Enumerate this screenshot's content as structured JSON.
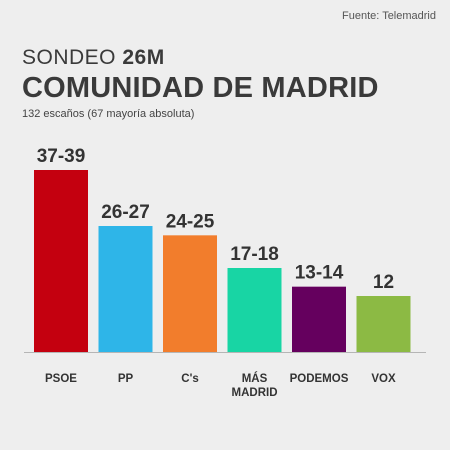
{
  "source": "Fuente: Telemadrid",
  "title_prefix": "SONDEO",
  "title_strong": "26M",
  "title_main": "COMUNIDAD DE MADRID",
  "subtitle": "132 escaños (67 mayoría absoluta)",
  "chart_data": {
    "type": "bar",
    "title": "COMUNIDAD DE MADRID",
    "subtitle": "132 escaños (67 mayoría absoluta)",
    "categories": [
      "PSOE",
      "PP",
      "C's",
      "MÁS MADRID",
      "PODEMOS",
      "VOX"
    ],
    "category_lines": [
      [
        "PSOE"
      ],
      [
        "PP"
      ],
      [
        "C's"
      ],
      [
        "MÁS",
        "MADRID"
      ],
      [
        "PODEMOS"
      ],
      [
        "VOX"
      ]
    ],
    "value_labels": [
      "37-39",
      "26-27",
      "24-25",
      "17-18",
      "13-14",
      "12"
    ],
    "values": [
      39,
      27,
      25,
      18,
      14,
      12
    ],
    "colors": [
      "#c4000f",
      "#2eb5e8",
      "#f27d2c",
      "#18d5a4",
      "#65005e",
      "#8cba44"
    ],
    "ylim": [
      0,
      39
    ],
    "grid": false,
    "legend": "none"
  }
}
